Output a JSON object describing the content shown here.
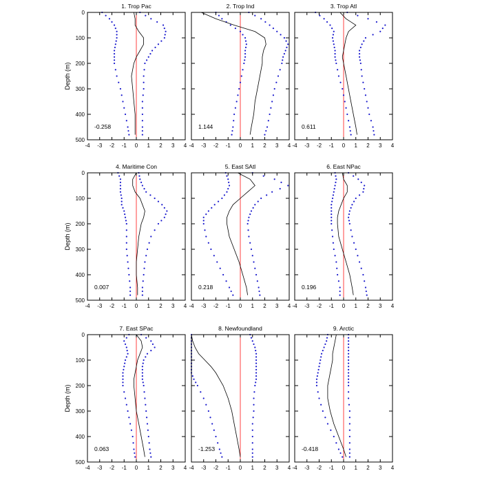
{
  "chart_data": [
    {
      "type": "line",
      "title": "1. Trop Pac",
      "value_label": "-0.258",
      "ylabel": "Depth (m)",
      "xlim": [
        -4,
        4
      ],
      "ylim": [
        500,
        0
      ],
      "xticks": [
        "-4",
        "-3",
        "-2",
        "-1",
        "0",
        "1",
        "2",
        "3",
        "4"
      ],
      "yticks": [
        "0",
        "100",
        "200",
        "300",
        "400",
        "500"
      ],
      "depth": [
        0,
        25,
        50,
        75,
        100,
        125,
        150,
        175,
        200,
        250,
        300,
        350,
        400,
        450,
        480
      ],
      "series": [
        {
          "values": [
            -0.2,
            -0.1,
            -0.1,
            0.2,
            0.6,
            0.6,
            0.3,
            0.0,
            -0.2,
            -0.4,
            -0.3,
            -0.2,
            -0.1,
            -0.1,
            -0.1
          ]
        },
        {
          "values": [
            -2.8,
            -2.2,
            -1.8,
            -1.6,
            -1.6,
            -1.7,
            -1.8,
            -1.8,
            -1.8,
            -1.6,
            -1.3,
            -1.1,
            -0.9,
            -0.7,
            -0.6
          ]
        },
        {
          "values": [
            0.3,
            1.2,
            2.2,
            2.4,
            2.3,
            1.8,
            1.3,
            1.0,
            0.7,
            0.6,
            0.6,
            0.5,
            0.5,
            0.5,
            0.5
          ]
        }
      ],
      "zero_line": 0
    },
    {
      "type": "line",
      "title": "2. Trop Ind",
      "value_label": "1.144",
      "xlim": [
        -4,
        4
      ],
      "ylim": [
        500,
        0
      ],
      "xticks": [
        "-4",
        "-3",
        "-2",
        "-1",
        "0",
        "1",
        "2",
        "3",
        "4"
      ],
      "yticks": [
        "0",
        "100",
        "200",
        "300",
        "400",
        "500"
      ],
      "depth": [
        0,
        25,
        50,
        75,
        100,
        125,
        150,
        175,
        200,
        250,
        300,
        350,
        400,
        450,
        480
      ],
      "series": [
        {
          "values": [
            -3.2,
            -2.0,
            -0.5,
            1.2,
            2.0,
            2.1,
            1.9,
            1.8,
            1.8,
            1.6,
            1.4,
            1.2,
            1.1,
            0.9,
            0.8
          ]
        },
        {
          "values": [
            -2.0,
            -1.5,
            -0.8,
            0.0,
            0.4,
            0.5,
            0.4,
            0.4,
            0.3,
            0.1,
            -0.1,
            -0.3,
            -0.5,
            -0.6,
            -0.7
          ]
        },
        {
          "values": [
            0.7,
            1.7,
            2.4,
            3.0,
            3.6,
            3.9,
            3.7,
            3.5,
            3.4,
            3.1,
            2.8,
            2.6,
            2.4,
            2.2,
            2.0
          ]
        }
      ],
      "zero_line": 0
    },
    {
      "type": "line",
      "title": "3. Trop Atl",
      "value_label": "0.611",
      "xlim": [
        -4,
        4
      ],
      "ylim": [
        500,
        0
      ],
      "xticks": [
        "-4",
        "-3",
        "-2",
        "-1",
        "0",
        "1",
        "2",
        "3",
        "4"
      ],
      "yticks": [
        "0",
        "100",
        "200",
        "300",
        "400",
        "500"
      ],
      "depth": [
        0,
        25,
        50,
        75,
        100,
        125,
        150,
        175,
        200,
        250,
        300,
        350,
        400,
        450,
        480
      ],
      "series": [
        {
          "values": [
            -0.3,
            0.2,
            1.0,
            0.4,
            0.2,
            0.1,
            0.0,
            -0.1,
            0.0,
            0.2,
            0.4,
            0.6,
            0.8,
            1.0,
            1.1
          ]
        },
        {
          "values": [
            -2.3,
            -1.6,
            -1.1,
            -0.8,
            -0.9,
            -0.8,
            -0.7,
            -0.7,
            -0.6,
            -0.4,
            -0.1,
            0.1,
            0.3,
            0.5,
            0.6
          ]
        },
        {
          "values": [
            0.3,
            2.0,
            3.4,
            3.0,
            1.8,
            1.5,
            1.3,
            1.3,
            1.4,
            1.5,
            1.7,
            1.9,
            2.1,
            2.4,
            2.5
          ]
        }
      ],
      "zero_line": 0
    },
    {
      "type": "line",
      "title": "4. Maritime Con",
      "value_label": "0.007",
      "ylabel": "Depth (m)",
      "xlim": [
        -4,
        4
      ],
      "ylim": [
        500,
        0
      ],
      "xticks": [
        "-4",
        "-3",
        "-2",
        "-1",
        "0",
        "1",
        "2",
        "3",
        "4"
      ],
      "yticks": [
        "0",
        "100",
        "200",
        "300",
        "400",
        "500"
      ],
      "depth": [
        0,
        25,
        50,
        75,
        100,
        125,
        150,
        175,
        200,
        250,
        300,
        350,
        400,
        450,
        480
      ],
      "series": [
        {
          "values": [
            0.0,
            -0.3,
            -0.3,
            -0.1,
            0.3,
            0.5,
            0.7,
            0.6,
            0.4,
            0.2,
            0.1,
            0.0,
            0.0,
            0.1,
            0.1
          ]
        },
        {
          "values": [
            -1.5,
            -1.3,
            -1.3,
            -1.3,
            -1.2,
            -1.2,
            -1.0,
            -0.9,
            -0.8,
            -0.8,
            -0.8,
            -0.7,
            -0.6,
            -0.5,
            -0.5
          ]
        },
        {
          "values": [
            0.2,
            0.3,
            0.5,
            0.8,
            1.5,
            2.1,
            2.5,
            2.3,
            1.8,
            1.2,
            0.9,
            0.7,
            0.6,
            0.5,
            0.5
          ]
        }
      ],
      "zero_line": 0
    },
    {
      "type": "line",
      "title": "5. East SAtl",
      "value_label": "0.218",
      "xlim": [
        -4,
        4
      ],
      "ylim": [
        500,
        0
      ],
      "xticks": [
        "-4",
        "-3",
        "-2",
        "-1",
        "0",
        "1",
        "2",
        "3",
        "4"
      ],
      "yticks": [
        "0",
        "100",
        "200",
        "300",
        "400",
        "500"
      ],
      "depth": [
        0,
        25,
        50,
        75,
        100,
        125,
        150,
        175,
        200,
        250,
        300,
        350,
        400,
        450,
        480
      ],
      "series": [
        {
          "values": [
            -0.2,
            0.8,
            1.2,
            0.6,
            0.0,
            -0.6,
            -0.9,
            -1.1,
            -1.1,
            -0.9,
            -0.5,
            -0.1,
            0.2,
            0.5,
            0.6
          ]
        },
        {
          "values": [
            -1.2,
            -1.0,
            -0.9,
            -1.1,
            -1.5,
            -2.1,
            -2.6,
            -3.0,
            -3.0,
            -2.8,
            -2.4,
            -1.9,
            -1.4,
            -0.9,
            -0.6
          ]
        },
        {
          "values": [
            1.0,
            2.8,
            3.9,
            2.6,
            1.7,
            1.2,
            0.9,
            0.7,
            0.6,
            0.7,
            0.9,
            1.1,
            1.3,
            1.5,
            1.6
          ]
        }
      ],
      "zero_line": 0
    },
    {
      "type": "line",
      "title": "6. East NPac",
      "value_label": "0.196",
      "xlim": [
        -4,
        4
      ],
      "ylim": [
        500,
        0
      ],
      "xticks": [
        "-4",
        "-3",
        "-2",
        "-1",
        "0",
        "1",
        "2",
        "3",
        "4"
      ],
      "yticks": [
        "0",
        "100",
        "200",
        "300",
        "400",
        "500"
      ],
      "depth": [
        0,
        25,
        50,
        75,
        100,
        125,
        150,
        175,
        200,
        250,
        300,
        350,
        400,
        450,
        480
      ],
      "series": [
        {
          "values": [
            -0.1,
            0.0,
            0.3,
            0.3,
            0.0,
            -0.2,
            -0.4,
            -0.5,
            -0.5,
            -0.4,
            -0.1,
            0.2,
            0.5,
            0.7,
            0.8
          ]
        },
        {
          "values": [
            -0.7,
            -0.6,
            -0.7,
            -0.8,
            -0.9,
            -1.0,
            -1.0,
            -1.0,
            -1.0,
            -0.9,
            -0.8,
            -0.6,
            -0.5,
            -0.3,
            -0.3
          ]
        },
        {
          "values": [
            0.4,
            1.2,
            1.7,
            1.6,
            1.0,
            0.7,
            0.5,
            0.4,
            0.5,
            0.7,
            1.0,
            1.3,
            1.6,
            1.8,
            1.9
          ]
        }
      ],
      "zero_line": 0
    },
    {
      "type": "line",
      "title": "7. East SPac",
      "value_label": "0.063",
      "ylabel": "Depth (m)",
      "xlim": [
        -4,
        4
      ],
      "ylim": [
        500,
        0
      ],
      "xticks": [
        "-4",
        "-3",
        "-2",
        "-1",
        "0",
        "1",
        "2",
        "3",
        "4"
      ],
      "yticks": [
        "0",
        "100",
        "200",
        "300",
        "400",
        "500"
      ],
      "depth": [
        0,
        25,
        50,
        75,
        100,
        125,
        150,
        175,
        200,
        250,
        300,
        350,
        400,
        450,
        480
      ],
      "series": [
        {
          "values": [
            0.0,
            0.4,
            0.5,
            0.3,
            0.1,
            0.0,
            -0.1,
            -0.2,
            -0.2,
            -0.1,
            0.0,
            0.2,
            0.4,
            0.6,
            0.7
          ]
        },
        {
          "values": [
            -0.6,
            -1.0,
            -0.8,
            -0.7,
            -0.9,
            -1.0,
            -1.1,
            -1.1,
            -1.1,
            -0.9,
            -0.7,
            -0.5,
            -0.3,
            -0.2,
            -0.1
          ]
        },
        {
          "values": [
            0.4,
            1.2,
            1.5,
            0.9,
            0.6,
            0.5,
            0.5,
            0.5,
            0.6,
            0.7,
            0.8,
            0.9,
            1.0,
            1.1,
            1.2
          ]
        }
      ],
      "zero_line": 0
    },
    {
      "type": "line",
      "title": "8. Newfoundland",
      "value_label": "-1.253",
      "xlim": [
        -4,
        4
      ],
      "ylim": [
        500,
        0
      ],
      "xticks": [
        "-4",
        "-3",
        "-2",
        "-1",
        "0",
        "1",
        "2",
        "3",
        "4"
      ],
      "yticks": [
        "0",
        "100",
        "200",
        "300",
        "400",
        "500"
      ],
      "depth": [
        0,
        25,
        50,
        75,
        100,
        125,
        150,
        175,
        200,
        250,
        300,
        350,
        400,
        450,
        480
      ],
      "series": [
        {
          "values": [
            -4.0,
            -3.9,
            -3.7,
            -3.4,
            -2.9,
            -2.4,
            -2.0,
            -1.7,
            -1.4,
            -1.0,
            -0.7,
            -0.5,
            -0.3,
            -0.1,
            0.0
          ]
        },
        {
          "values": [
            -4.0,
            -4.0,
            -4.0,
            -4.0,
            -4.0,
            -4.0,
            -4.0,
            -3.8,
            -3.5,
            -3.0,
            -2.6,
            -2.3,
            -2.0,
            -1.7,
            -1.5
          ]
        },
        {
          "values": [
            0.8,
            1.0,
            1.2,
            1.3,
            1.3,
            1.3,
            1.3,
            1.3,
            1.2,
            1.1,
            1.1,
            1.0,
            1.0,
            1.0,
            1.0
          ]
        }
      ],
      "zero_line": 0
    },
    {
      "type": "line",
      "title": "9. Arctic",
      "value_label": "-0.418",
      "xlim": [
        -4,
        4
      ],
      "ylim": [
        500,
        0
      ],
      "xticks": [
        "-4",
        "-3",
        "-2",
        "-1",
        "0",
        "1",
        "2",
        "3",
        "4"
      ],
      "yticks": [
        "0",
        "100",
        "200",
        "300",
        "400",
        "500"
      ],
      "depth": [
        0,
        25,
        50,
        75,
        100,
        125,
        150,
        175,
        200,
        250,
        300,
        350,
        400,
        450,
        480
      ],
      "series": [
        {
          "values": [
            -0.6,
            -0.7,
            -0.8,
            -0.9,
            -0.9,
            -1.0,
            -1.1,
            -1.2,
            -1.3,
            -1.3,
            -1.1,
            -0.8,
            -0.4,
            0.0,
            0.2
          ]
        },
        {
          "values": [
            -1.3,
            -1.4,
            -1.6,
            -1.8,
            -1.9,
            -2.0,
            -2.1,
            -2.2,
            -2.2,
            -2.0,
            -1.7,
            -1.3,
            -0.8,
            -0.4,
            -0.1
          ]
        },
        {
          "values": [
            0.4,
            0.4,
            0.4,
            0.4,
            0.4,
            0.4,
            0.4,
            0.4,
            0.4,
            0.4,
            0.5,
            0.5,
            0.5,
            0.5,
            0.5
          ]
        }
      ],
      "zero_line": 0
    }
  ],
  "colors": {
    "mean_line": "#000000",
    "bound_dots": "#1a1acd",
    "zero_line": "#ff4040",
    "frame": "#000000"
  }
}
